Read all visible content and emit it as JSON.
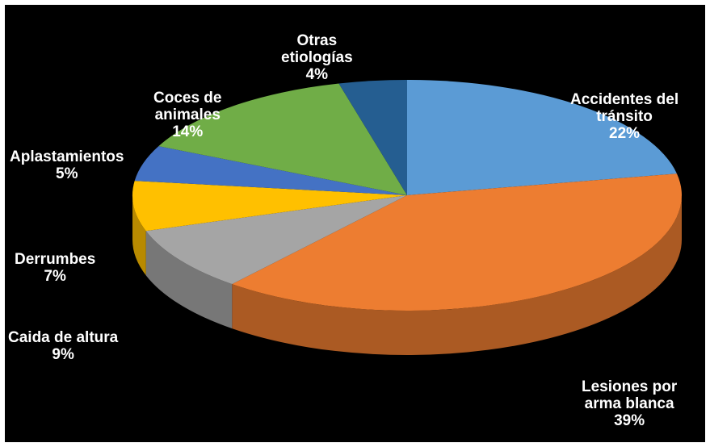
{
  "chart_data": {
    "type": "pie",
    "style": "3d",
    "title": "",
    "background": "#000000",
    "label_color": "#ffffff",
    "slices": [
      {
        "lines": [
          "Accidentes del",
          "tránsito"
        ],
        "pct_label": "22%",
        "value": 22,
        "color": "#5B9BD5"
      },
      {
        "lines": [
          "Lesiones por",
          "arma blanca"
        ],
        "pct_label": "39%",
        "value": 39,
        "color": "#ED7D31"
      },
      {
        "lines": [
          "Caida de altura"
        ],
        "pct_label": "9%",
        "value": 9,
        "color": "#A5A5A5"
      },
      {
        "lines": [
          "Derrumbes"
        ],
        "pct_label": "7%",
        "value": 7,
        "color": "#FFC000"
      },
      {
        "lines": [
          "Aplastamientos"
        ],
        "pct_label": "5%",
        "value": 5,
        "color": "#4472C4"
      },
      {
        "lines": [
          "Coces de",
          "animales"
        ],
        "pct_label": "14%",
        "value": 14,
        "color": "#70AD47"
      },
      {
        "lines": [
          "Otras",
          "etiologías"
        ],
        "pct_label": "4%",
        "value": 4,
        "color": "#255E91"
      }
    ]
  }
}
